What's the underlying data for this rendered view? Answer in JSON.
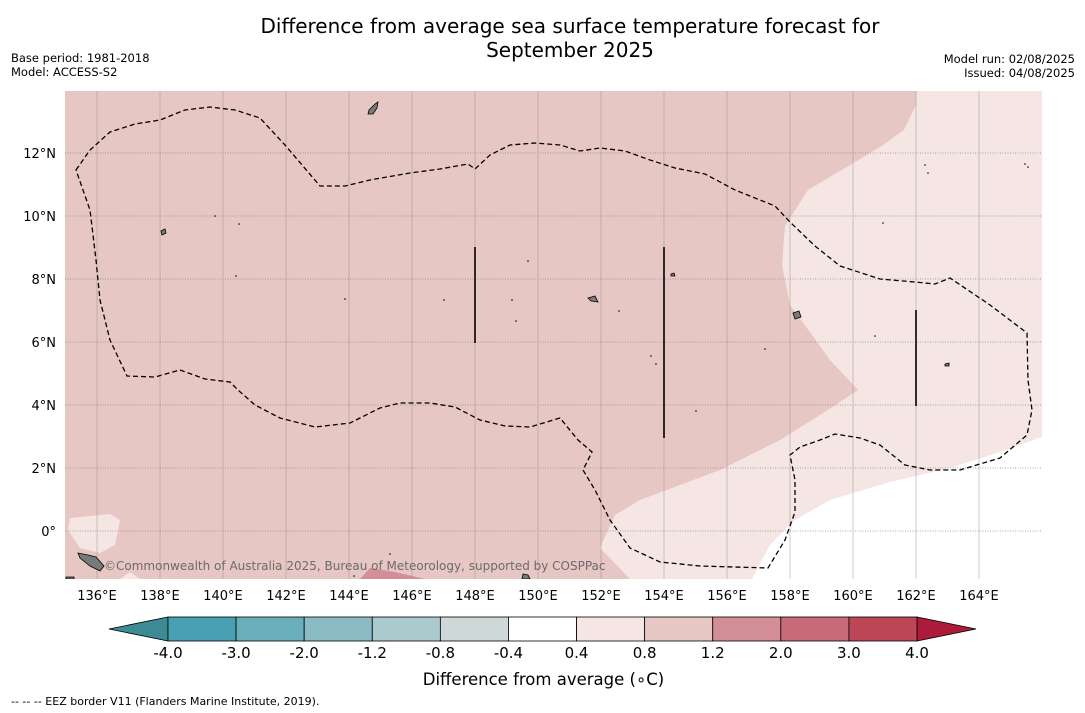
{
  "title_line1": "Difference from average sea surface temperature forecast for",
  "title_line2": "September 2025",
  "meta_left": [
    "Base period: 1981-2018",
    "Model: ACCESS-S2"
  ],
  "meta_right": [
    "Model run: 02/08/2025",
    "Issued: 04/08/2025"
  ],
  "copyright": "©Commonwealth of Australia 2025, Bureau of Meteorology, supported by COSPPac",
  "lon_labels": [
    "136°E",
    "138°E",
    "140°E",
    "142°E",
    "144°E",
    "146°E",
    "148°E",
    "150°E",
    "152°E",
    "154°E",
    "156°E",
    "158°E",
    "160°E",
    "162°E",
    "164°E"
  ],
  "lat_labels": [
    "12°N",
    "10°N",
    "8°N",
    "6°N",
    "4°N",
    "2°N",
    "0°"
  ],
  "colorbar": {
    "ticks": [
      "-4.0",
      "-3.0",
      "-2.0",
      "-1.2",
      "-0.8",
      "-0.4",
      "0.4",
      "0.8",
      "1.2",
      "2.0",
      "3.0",
      "4.0"
    ],
    "colors": [
      "#48a1b3",
      "#6aaeba",
      "#8bbcc4",
      "#abcace",
      "#cfd8d9",
      "#ffffff",
      "#f5e6e4",
      "#e7c7c3",
      "#d48e97",
      "#c86a77",
      "#bd4656"
    ],
    "under_color": "#3c8a93",
    "over_color": "#ad1a3a",
    "label": "Difference from average (∘C)"
  },
  "footer": "--  --  -- EEZ border V11 (Flanders Marine Institute, 2019)."
}
